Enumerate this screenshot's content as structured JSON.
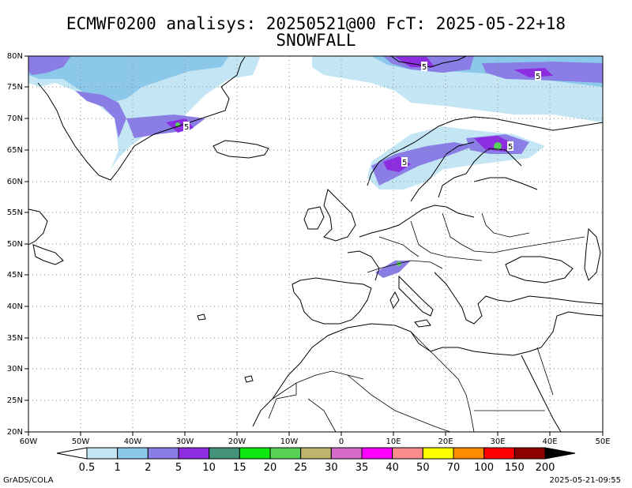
{
  "title_line1": "ECMWF0200 analisys: 20250521@00 FcT: 2025-05-22+18",
  "title_line2": "SNOWFALL",
  "map": {
    "lon_labels": [
      "60W",
      "50W",
      "40W",
      "30W",
      "20W",
      "10W",
      "0",
      "10E",
      "20E",
      "30E",
      "40E",
      "50E"
    ],
    "lat_labels": [
      "20N",
      "25N",
      "30N",
      "35N",
      "40N",
      "45N",
      "50N",
      "55N",
      "60N",
      "65N",
      "70N",
      "75N",
      "80N"
    ],
    "grid_lines": "dotted",
    "contour_labels": [
      "5",
      "5",
      "5",
      "5",
      "5"
    ]
  },
  "legend": {
    "colors": [
      "#ffffff",
      "#c4e6f4",
      "#8bc8ea",
      "#8a7ee6",
      "#8c2de0",
      "#45927a",
      "#0ee80e",
      "#57d257",
      "#bdb56c",
      "#d76bcb",
      "#ff00ff",
      "#fb8b8c",
      "#ffff00",
      "#ff8c00",
      "#ff0000",
      "#8c0000",
      "#000000"
    ],
    "labels": [
      "0.5",
      "1",
      "2",
      "5",
      "10",
      "15",
      "20",
      "25",
      "30",
      "35",
      "40",
      "50",
      "70",
      "100",
      "150",
      "200"
    ]
  },
  "footer_left": "GrADS/COLA",
  "footer_right": "2025-05-21-09:55"
}
